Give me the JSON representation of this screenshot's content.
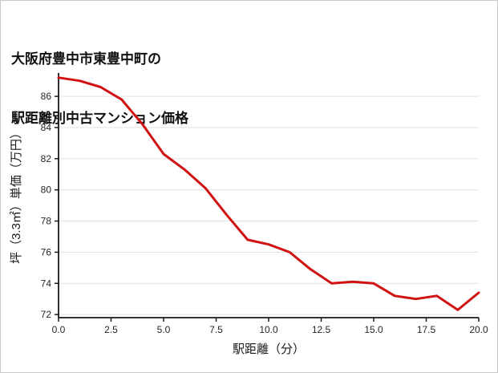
{
  "title": {
    "line1": "大阪府豊中市東豊中町の",
    "line2": "駅距離別中古マンション価格"
  },
  "chart_data": {
    "type": "line",
    "title": "大阪府豊中市東豊中町の駅距離別中古マンション価格",
    "xlabel": "駅距離（分）",
    "ylabel": "坪（3.3㎡）単価（万円）",
    "x": [
      0,
      1,
      2,
      3,
      4,
      5,
      6,
      7,
      8,
      9,
      10,
      11,
      12,
      13,
      14,
      15,
      16,
      17,
      18,
      19,
      20
    ],
    "values": [
      87.2,
      87.0,
      86.6,
      85.8,
      84.2,
      82.3,
      81.3,
      80.1,
      78.4,
      76.8,
      76.5,
      76.0,
      74.9,
      74.0,
      74.1,
      74.0,
      73.2,
      73.0,
      73.2,
      72.3,
      73.4
    ],
    "xlim": [
      0,
      20
    ],
    "ylim": [
      71.8,
      87.5
    ],
    "x_tick_values": [
      0,
      2.5,
      5,
      7.5,
      10,
      12.5,
      15,
      17.5,
      20
    ],
    "x_tick_labels": [
      "0.0",
      "2.5",
      "5.0",
      "7.5",
      "10.0",
      "12.5",
      "15.0",
      "17.5",
      "20.0"
    ],
    "y_ticks": [
      72,
      74,
      76,
      78,
      80,
      82,
      84,
      86
    ],
    "grid": "horizontal",
    "line_color": "#d01212",
    "grid_color": "#e0e0e0",
    "axis_color": "#1a1a1a"
  }
}
